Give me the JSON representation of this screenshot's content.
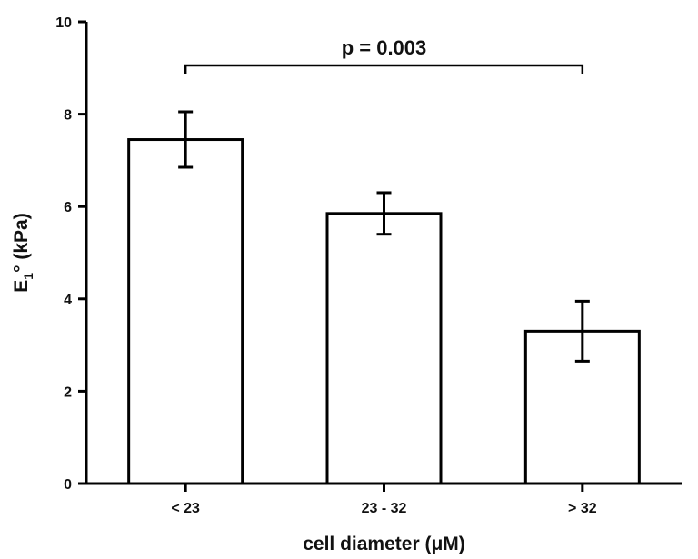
{
  "chart_data": {
    "type": "bar",
    "categories": [
      "< 23",
      "23 - 32",
      "> 32"
    ],
    "values": [
      7.45,
      5.85,
      3.3
    ],
    "error_low": [
      6.85,
      5.4,
      2.65
    ],
    "error_high": [
      8.05,
      6.3,
      3.95
    ],
    "xlabel": "cell diameter (μM)",
    "ylabel": {
      "main": "E",
      "sub": "1",
      "rest": "° (kPa)"
    },
    "ylim": [
      0,
      10
    ],
    "yticks": [
      "0",
      "2",
      "4",
      "6",
      "8",
      "10"
    ],
    "annotation": {
      "text": "p = 0.003",
      "from_category": 0,
      "to_category": 2
    },
    "grid": false,
    "bar_fill": "#ffffff",
    "bar_stroke": "#000000"
  }
}
